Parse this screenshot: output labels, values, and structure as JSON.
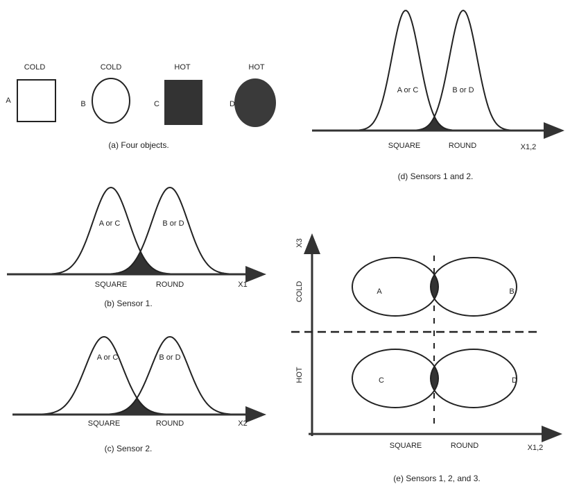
{
  "panel_a": {
    "labels": [
      "COLD",
      "COLD",
      "HOT",
      "HOT"
    ],
    "objects": [
      "A",
      "B",
      "C",
      "D"
    ],
    "caption": "(a) Four objects."
  },
  "panel_b": {
    "curves": [
      "A or C",
      "B or D"
    ],
    "axis_labels": [
      "SQUARE",
      "ROUND"
    ],
    "axis": "X1",
    "caption": "(b) Sensor 1."
  },
  "panel_c": {
    "curves": [
      "A or C",
      "B or D"
    ],
    "axis_labels": [
      "SQUARE",
      "ROUND"
    ],
    "axis": "X2",
    "caption": "(c) Sensor 2."
  },
  "panel_d": {
    "curves": [
      "A or C",
      "B or D"
    ],
    "axis_labels": [
      "SQUARE",
      "ROUND"
    ],
    "axis": "X1,2",
    "caption": "(d) Sensors 1 and 2."
  },
  "panel_e": {
    "y_axis": "X3",
    "y_labels": [
      "COLD",
      "HOT"
    ],
    "regions": [
      "A",
      "B",
      "C",
      "D"
    ],
    "axis_labels": [
      "SQUARE",
      "ROUND"
    ],
    "axis": "X1,2",
    "caption": "(e) Sensors 1, 2, and 3."
  }
}
